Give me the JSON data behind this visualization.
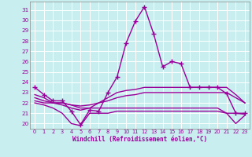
{
  "xlabel": "Windchill (Refroidissement éolien,°C)",
  "xlim": [
    -0.5,
    23.5
  ],
  "ylim": [
    19.5,
    31.8
  ],
  "yticks": [
    20,
    21,
    22,
    23,
    24,
    25,
    26,
    27,
    28,
    29,
    30,
    31
  ],
  "xticks": [
    0,
    1,
    2,
    3,
    4,
    5,
    6,
    7,
    8,
    9,
    10,
    11,
    12,
    13,
    14,
    15,
    16,
    17,
    18,
    19,
    20,
    21,
    22,
    23
  ],
  "background_color": "#c8eef0",
  "line_color": "#990099",
  "grid_color": "#ffffff",
  "lines": [
    {
      "x": [
        0,
        1,
        2,
        3,
        4,
        5,
        6,
        7,
        8,
        9,
        10,
        11,
        12,
        13,
        14,
        15,
        16,
        17,
        18,
        19,
        20,
        21,
        22,
        23
      ],
      "y": [
        23.5,
        22.8,
        22.2,
        22.2,
        21.2,
        19.9,
        21.3,
        21.2,
        23.0,
        24.5,
        27.8,
        29.9,
        31.3,
        28.7,
        25.5,
        26.0,
        25.8,
        23.5,
        23.5,
        23.5,
        23.5,
        22.9,
        21.0,
        21.0
      ],
      "marker": "+",
      "markersize": 4,
      "linewidth": 1.0
    },
    {
      "x": [
        0,
        1,
        2,
        3,
        4,
        5,
        6,
        7,
        8,
        9,
        10,
        11,
        12,
        13,
        14,
        15,
        16,
        17,
        18,
        19,
        20,
        21,
        22,
        23
      ],
      "y": [
        22.8,
        22.5,
        22.0,
        21.8,
        21.5,
        21.3,
        21.5,
        22.0,
        22.5,
        23.0,
        23.2,
        23.3,
        23.5,
        23.5,
        23.5,
        23.5,
        23.5,
        23.5,
        23.5,
        23.5,
        23.5,
        23.5,
        22.8,
        22.0
      ],
      "marker": null,
      "markersize": 0,
      "linewidth": 1.0
    },
    {
      "x": [
        0,
        1,
        2,
        3,
        4,
        5,
        6,
        7,
        8,
        9,
        10,
        11,
        12,
        13,
        14,
        15,
        16,
        17,
        18,
        19,
        20,
        21,
        22,
        23
      ],
      "y": [
        22.5,
        22.2,
        22.0,
        22.0,
        21.8,
        21.7,
        21.8,
        22.0,
        22.2,
        22.5,
        22.7,
        22.8,
        23.0,
        23.0,
        23.0,
        23.0,
        23.0,
        23.0,
        23.0,
        23.0,
        23.0,
        23.0,
        22.5,
        22.0
      ],
      "marker": null,
      "markersize": 0,
      "linewidth": 1.0
    },
    {
      "x": [
        0,
        1,
        2,
        3,
        4,
        5,
        6,
        7,
        8,
        9,
        10,
        11,
        12,
        13,
        14,
        15,
        16,
        17,
        18,
        19,
        20,
        21,
        22,
        23
      ],
      "y": [
        22.2,
        22.0,
        22.0,
        22.0,
        21.8,
        21.5,
        21.5,
        21.5,
        21.5,
        21.5,
        21.5,
        21.5,
        21.5,
        21.5,
        21.5,
        21.5,
        21.5,
        21.5,
        21.5,
        21.5,
        21.5,
        21.0,
        21.0,
        20.9
      ],
      "marker": null,
      "markersize": 0,
      "linewidth": 1.0
    },
    {
      "x": [
        0,
        1,
        2,
        3,
        4,
        5,
        6,
        7,
        8,
        9,
        10,
        11,
        12,
        13,
        14,
        15,
        16,
        17,
        18,
        19,
        20,
        21,
        22,
        23
      ],
      "y": [
        22.0,
        21.8,
        21.5,
        21.0,
        20.0,
        19.8,
        21.0,
        21.0,
        21.0,
        21.2,
        21.2,
        21.2,
        21.2,
        21.2,
        21.2,
        21.2,
        21.2,
        21.2,
        21.2,
        21.2,
        21.2,
        21.0,
        20.0,
        20.8
      ],
      "marker": null,
      "markersize": 0,
      "linewidth": 1.0
    }
  ]
}
